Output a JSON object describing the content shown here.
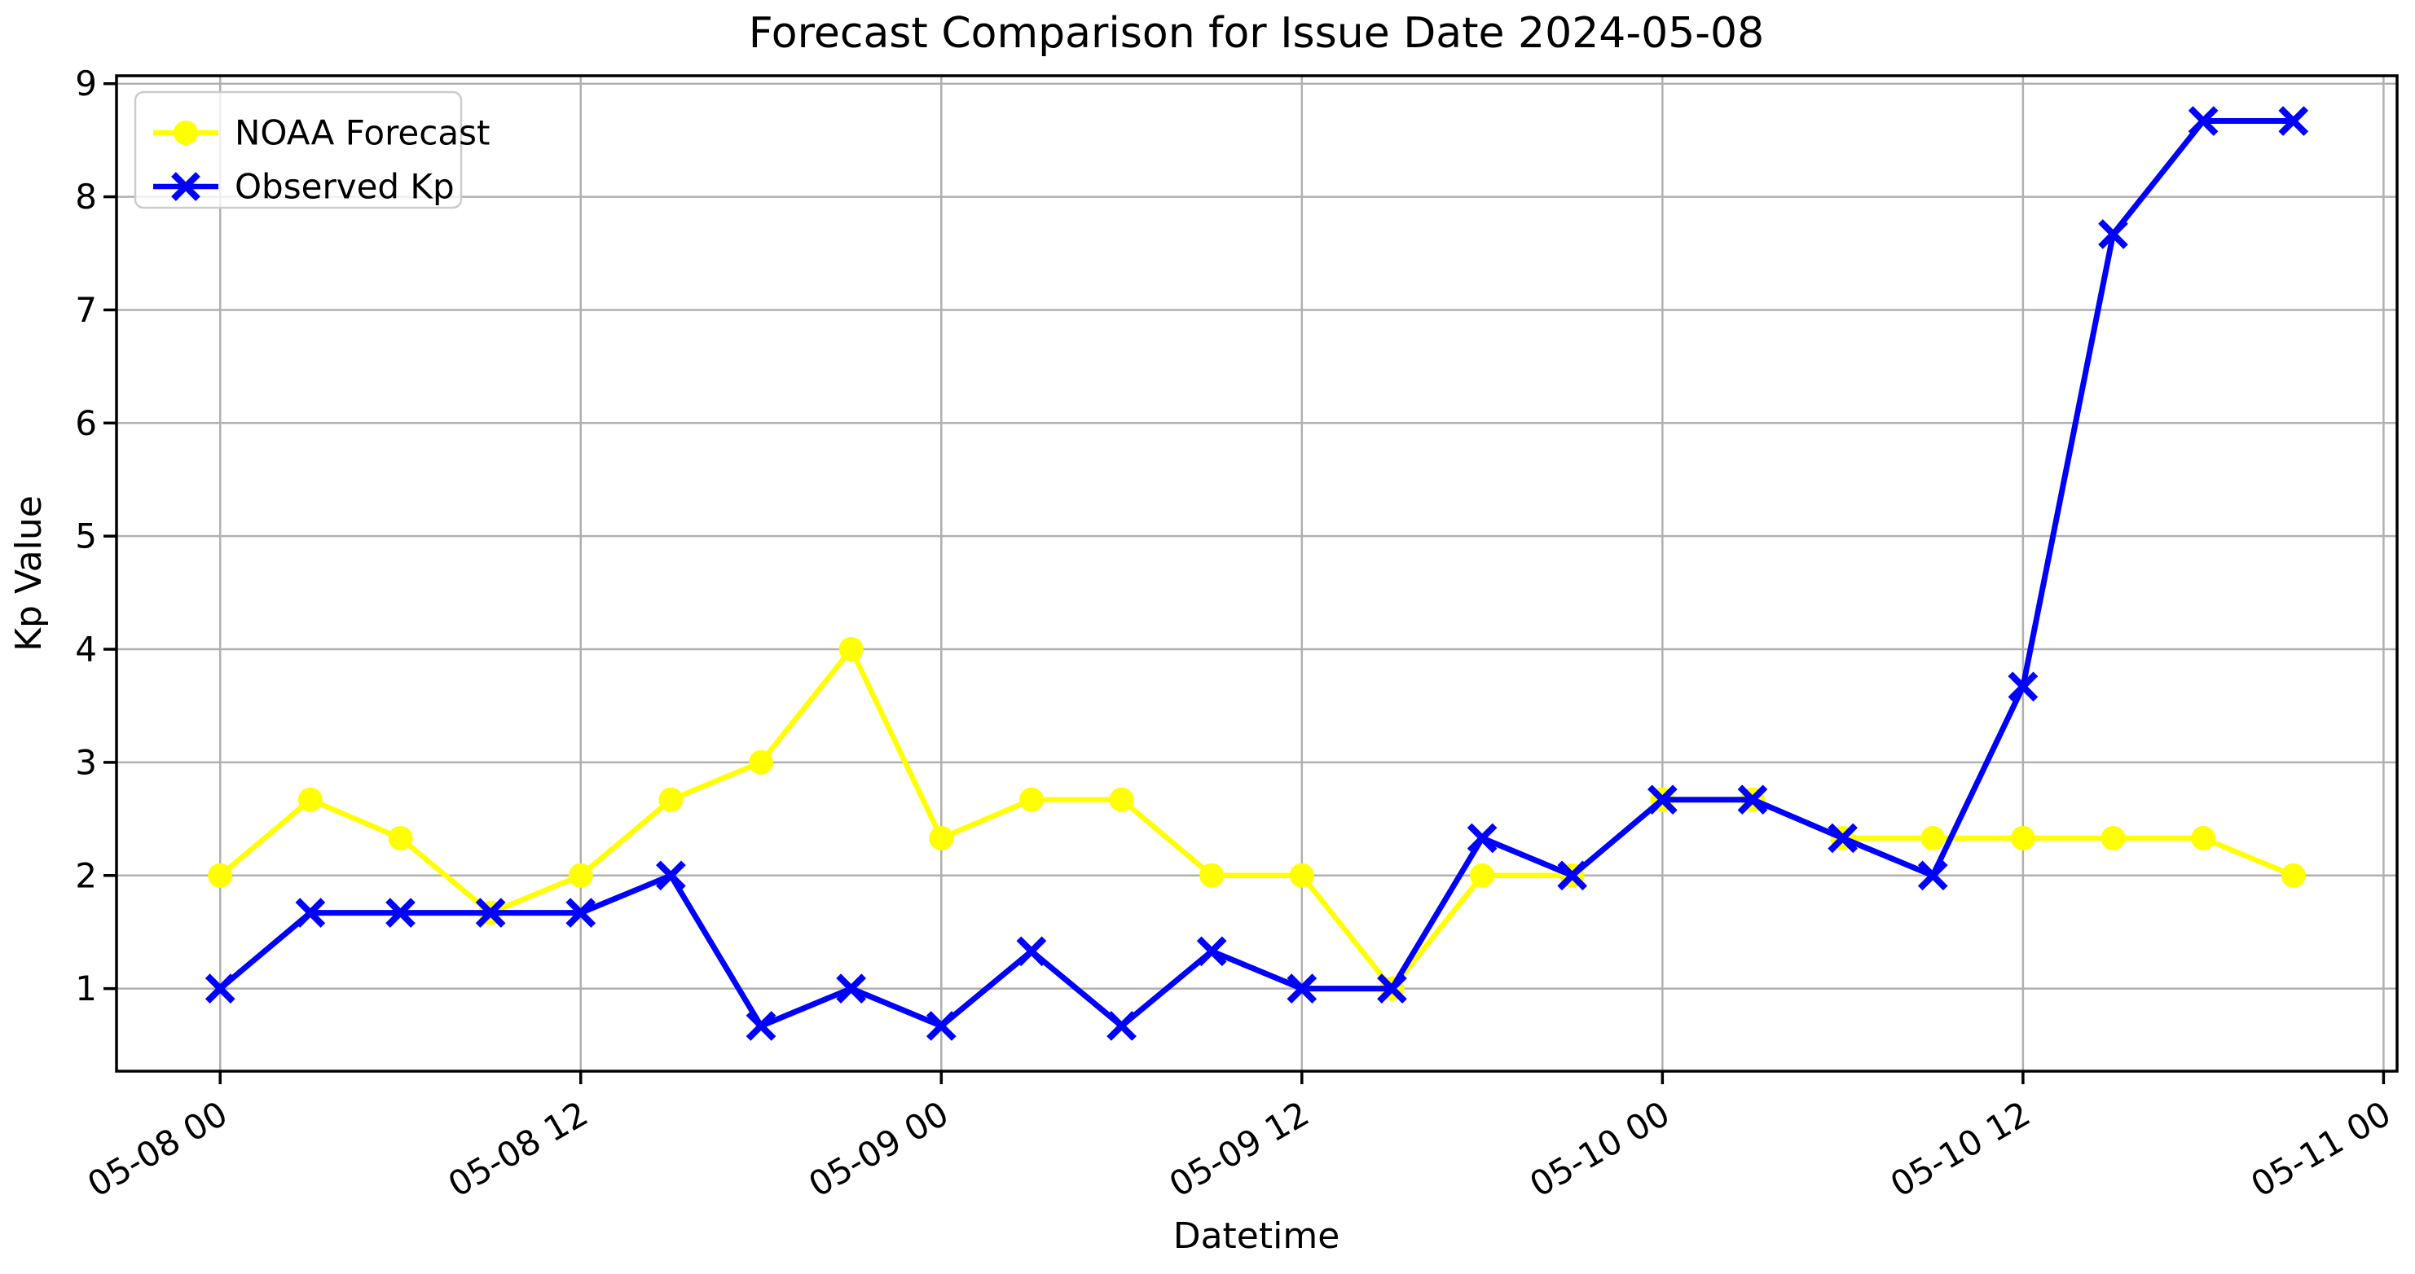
{
  "figure": {
    "title": "Forecast Comparison for Issue Date 2024-05-08",
    "xlabel": "Datetime",
    "ylabel": "Kp Value"
  },
  "legend": {
    "position": "upper-left",
    "entries": [
      {
        "label": "NOAA Forecast",
        "color": "#ffff00",
        "marker": "circle"
      },
      {
        "label": "Observed Kp",
        "color": "#0000ff",
        "marker": "x"
      }
    ]
  },
  "chart_data": {
    "type": "line",
    "title": "Forecast Comparison for Issue Date 2024-05-08",
    "xlabel": "Datetime",
    "ylabel": "Kp Value",
    "x_unit": "hours since 2024-05-08 00:00 (3-hour cadence)",
    "x": [
      0,
      3,
      6,
      9,
      12,
      15,
      18,
      21,
      24,
      27,
      30,
      33,
      36,
      39,
      42,
      45,
      48,
      51,
      54,
      57,
      60,
      63,
      66,
      69
    ],
    "series": [
      {
        "name": "NOAA Forecast",
        "color": "#ffff00",
        "marker": "circle",
        "values": [
          2.0,
          2.67,
          2.33,
          1.67,
          2.0,
          2.67,
          3.0,
          4.0,
          2.33,
          2.67,
          2.67,
          2.0,
          2.0,
          1.0,
          2.0,
          2.0,
          2.67,
          2.67,
          2.33,
          2.33,
          2.33,
          2.33,
          2.33,
          2.0
        ]
      },
      {
        "name": "Observed Kp",
        "color": "#0000ff",
        "marker": "x",
        "values": [
          1.0,
          1.67,
          1.67,
          1.67,
          1.67,
          2.0,
          0.67,
          1.0,
          0.67,
          1.33,
          0.67,
          1.33,
          1.0,
          1.0,
          2.33,
          2.0,
          2.67,
          2.67,
          2.33,
          2.0,
          3.67,
          7.67,
          8.67,
          8.67
        ]
      }
    ],
    "x_ticks": {
      "hours": [
        0,
        12,
        24,
        36,
        48,
        60,
        72
      ],
      "labels": [
        "05-08 00",
        "05-08 12",
        "05-09 00",
        "05-09 12",
        "05-10 00",
        "05-10 12",
        "05-11 00"
      ],
      "rotation_deg": 30
    },
    "y_ticks": [
      1,
      2,
      3,
      4,
      5,
      6,
      7,
      8,
      9
    ],
    "xlim": [
      -3.45,
      72.45
    ],
    "ylim": [
      0.27,
      9.07
    ],
    "grid": true,
    "grid_color": "#b0b0b0",
    "background_color": "#ffffff",
    "legend_position": "upper-left"
  }
}
